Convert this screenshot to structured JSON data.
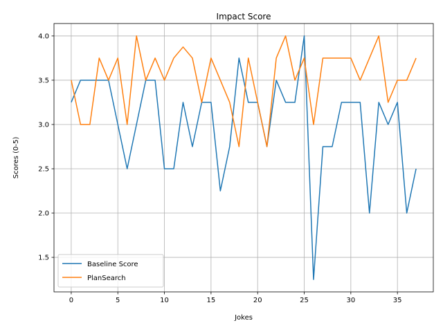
{
  "chart_data": {
    "type": "line",
    "title": "Impact Score",
    "xlabel": "Jokes",
    "ylabel": "Scores (0-5)",
    "xlim": [
      -1.85,
      38.85
    ],
    "ylim": [
      1.11,
      4.14
    ],
    "x_ticks": [
      0,
      5,
      10,
      15,
      20,
      25,
      30,
      35
    ],
    "y_ticks": [
      1.5,
      2.0,
      2.5,
      3.0,
      3.5,
      4.0
    ],
    "x_tick_labels": [
      "0",
      "5",
      "10",
      "15",
      "20",
      "25",
      "30",
      "35"
    ],
    "y_tick_labels": [
      "1.5",
      "2.0",
      "2.5",
      "3.0",
      "3.5",
      "4.0"
    ],
    "grid": true,
    "legend_position": "lower-left",
    "x": [
      0,
      1,
      2,
      3,
      4,
      5,
      6,
      7,
      8,
      9,
      10,
      11,
      12,
      13,
      14,
      15,
      16,
      17,
      18,
      19,
      20,
      21,
      22,
      23,
      24,
      25,
      26,
      27,
      28,
      29,
      30,
      31,
      32,
      33,
      34,
      35,
      36,
      37
    ],
    "series": [
      {
        "name": "Baseline Score",
        "color": "#1f77b4",
        "values": [
          3.25,
          3.5,
          3.5,
          3.5,
          3.5,
          3.0,
          2.5,
          3.0,
          3.5,
          3.5,
          2.5,
          2.5,
          3.25,
          2.75,
          3.25,
          3.25,
          2.25,
          2.75,
          3.75,
          3.25,
          3.25,
          2.75,
          3.5,
          3.25,
          3.25,
          4.0,
          1.25,
          2.75,
          2.75,
          3.25,
          3.25,
          3.25,
          2.0,
          3.25,
          3.0,
          3.25,
          2.0,
          2.5
        ]
      },
      {
        "name": "PlanSearch",
        "color": "#ff7f0e",
        "values": [
          3.5,
          3.0,
          3.0,
          3.75,
          3.5,
          3.75,
          3.0,
          4.0,
          3.5,
          3.75,
          3.5,
          3.75,
          3.875,
          3.75,
          3.25,
          3.75,
          3.5,
          3.25,
          2.75,
          3.75,
          3.25,
          2.75,
          3.75,
          4.0,
          3.5,
          3.75,
          3.0,
          3.75,
          3.75,
          3.75,
          3.75,
          3.5,
          3.75,
          4.0,
          3.25,
          3.5,
          3.5,
          3.75
        ]
      }
    ]
  }
}
